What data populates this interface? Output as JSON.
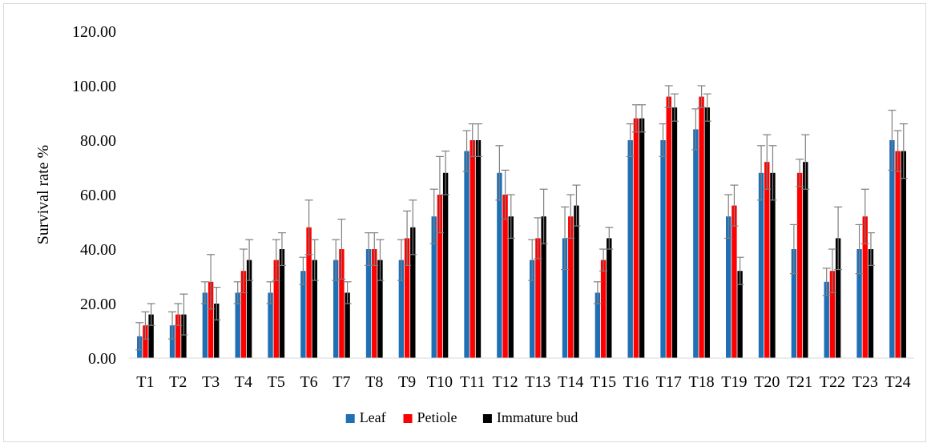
{
  "chart_data": {
    "type": "bar",
    "title": "",
    "xlabel": "",
    "ylabel": "Survival rate %",
    "ylim": [
      0,
      120
    ],
    "yticks": [
      "0.00",
      "20.00",
      "40.00",
      "60.00",
      "80.00",
      "100.00",
      "120.00"
    ],
    "ytick_values": [
      0,
      20,
      40,
      60,
      80,
      100,
      120
    ],
    "grid": false,
    "legend_position": "bottom",
    "error_bars": "upper and lower caps, gray",
    "categories": [
      "T1",
      "T2",
      "T3",
      "T4",
      "T5",
      "T6",
      "T7",
      "T8",
      "T9",
      "T10",
      "T11",
      "T12",
      "T13",
      "T14",
      "T15",
      "T16",
      "T17",
      "T18",
      "T19",
      "T20",
      "T21",
      "T22",
      "T23",
      "T24"
    ],
    "series": [
      {
        "name": "Leaf",
        "color": "#1f6fb5",
        "values": [
          8,
          12,
          24,
          24,
          24,
          32,
          36,
          40,
          36,
          52,
          76,
          68,
          36,
          44,
          24,
          80,
          80,
          84,
          52,
          68,
          40,
          28,
          40,
          80
        ],
        "errors": [
          5,
          5,
          4,
          4,
          4,
          5,
          7.5,
          6,
          7.5,
          10,
          7.5,
          10,
          7.5,
          11.5,
          4,
          6,
          6,
          7.5,
          8,
          10,
          9,
          5,
          9,
          11
        ]
      },
      {
        "name": "Petiole",
        "color": "#ff0000",
        "values": [
          12,
          16,
          28,
          32,
          36,
          48,
          40,
          40,
          44,
          60,
          80,
          60,
          44,
          52,
          36,
          88,
          96,
          96,
          56,
          72,
          68,
          32,
          52,
          76
        ],
        "errors": [
          5,
          4,
          10,
          8,
          7.5,
          10,
          11,
          6,
          10,
          14,
          6,
          9,
          7.5,
          8,
          4,
          5,
          4,
          4,
          7.5,
          10,
          5,
          8,
          10,
          7.5
        ]
      },
      {
        "name": "Immature bud",
        "color": "#000000",
        "values": [
          16,
          16,
          20,
          36,
          40,
          36,
          24,
          36,
          48,
          68,
          80,
          52,
          52,
          56,
          44,
          88,
          92,
          92,
          32,
          68,
          72,
          44,
          40,
          76
        ],
        "errors": [
          4,
          7.5,
          6,
          7.5,
          6,
          7.5,
          4,
          7.5,
          10,
          8,
          6,
          8,
          10,
          7.5,
          4,
          5,
          5,
          5,
          5,
          10,
          10,
          11.5,
          6,
          10
        ]
      }
    ]
  }
}
